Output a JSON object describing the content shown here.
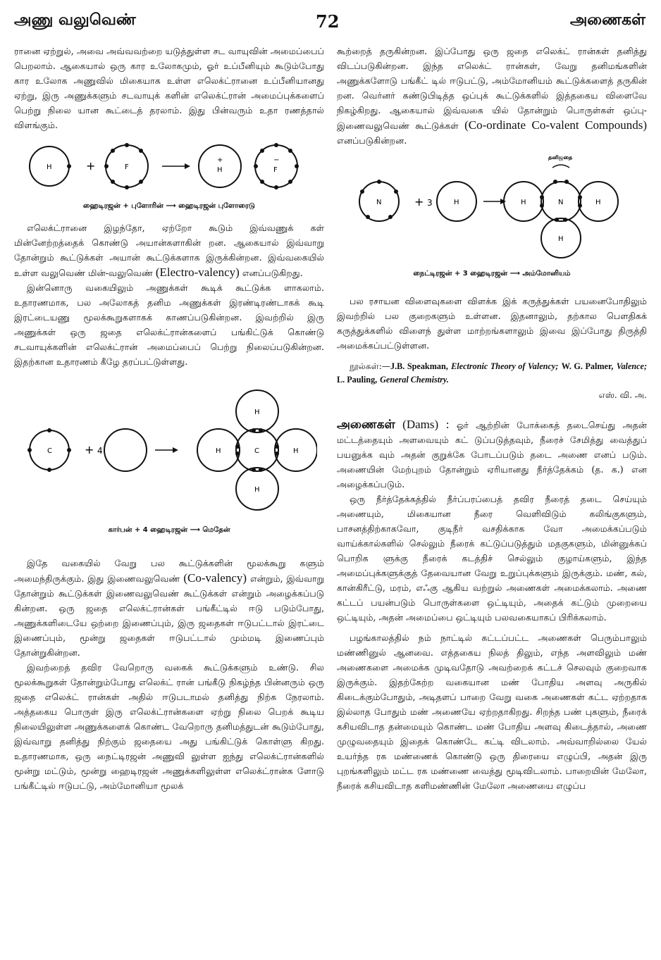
{
  "header": {
    "left": "அணு வலுவெண்",
    "page_number": "72",
    "right": "அணைகள்"
  },
  "left_column": {
    "p1": "ரானை ஏற்றுல், அவை அவ்வவற்றை யடுத்துள்ள சட வாயுவின் அமைப்பைப் பெறலாம். ஆகையால் ஒரு கார உலோகமும், ஓர் உப்பீனியும் கூடும்போது கார உலோக அணுவில் மிகையாக உள்ள எலெக்ட்ரானை உப்பீனியானது ஏற்று, இரு அணுக்களும் சடவாயுக் களின் எலெக்ட்ரான் அமைப்புக்களைப் பெற்று நிலை யான கூட்டைத் தரலாம். இது பின்வரும் உதா ரணத்தால் விளங்கும்.",
    "fig1_caption": "ஹைடிரஜன் + புளோரின் ⟶ ஹைடிரஜன் புளோரைடு",
    "p2": "எலெக்ட்ரானை இழந்தோ, ஏற்றோ கூடும் இவ்வணுக் கள் மின்னேற்றத்தைக் கொண்டு அயான்களாகின் றன. ஆகையால் இவ்வாறு தோன்றும் கூட்டுக்கள் அயான் கூட்டுக்களாக இருக்கின்றன. இவ்வகையில் உள்ள வலுவெண் மின்-வலுவெண்",
    "p2_english": "(Electro-valency)",
    "p2_end": "எனப்படுகிறது.",
    "p3": "இன்னொரு வகையிலும் அணுக்கள் கூடிக் கூட்டுக்க ளாகலாம். உதாரணமாக, பல அலோகத் தனிம அணுக்கள் இரண்டிரண்டாகக் கூடி இரட்டையணு மூலக்கூறுகளாகக் காணப்படுகின்றன. இவற்றில் இரு அணுக்கள் ஒரு ஜதை எலெக்ட்ரான்களைப் பங்கிட்டுக் கொண்டு சடவாயுக்களின் எலெக்ட்ரான் அமைப்பைப் பெற்று நிலைப்படுகின்றன. இதற்கான உதாரணம் கீழே தரப்பட்டுள்ளது.",
    "fig2_caption": "கார்பன் + 4 ஹைடிரஜன் ⟶ மெதேன்",
    "p4": "இதே வகையில் வேறு பல கூட்டுக்களின் மூலக்கூறு களும் அமைந்திருக்கும். இது இணைவலுவெண்",
    "p4_english": "(Co-valency)",
    "p4_end": "என்றும், இவ்வாறு தோன்றும் கூட்டுக்கள் இணைவலுவெண் கூட்டுக்கள் என்றும் அழைக்கப்படு கின்றன. ஒரு ஜதை எலெக்ட்ரான்கள் பங்கீட்டில் ஈடு படும்போது, அணுக்களிடையே ஒற்றை இணைப்பும், இரு ஜதைகள் ஈடுபட்டால் இரட்டை இணைப்பும், மூன்று ஜதைகள் ஈடுபட்டால் மும்மடி இணைப்பும் தோன்றுகின்றன.",
    "p5": "இவற்றைத் தவிர வேறொரு வகைக் கூட்டுக்களும் உண்டு. சில மூலக்கூறுகள் தோன்றும்போது எலெக்ட் ரான் பங்கீடு நிகழ்ந்த பின்னரும் ஒரு ஜதை எலெக்ட் ரான்கள் அதில் ஈடுபடாமல் தனித்து நிற்க நேரலாம். அத்தகைய பொருள் இரு எலெக்ட்ரான்களை ஏற்று நிலை பெறக் கூடிய நிலையிலுள்ள அணுக்களைக் கொண்ட வேறொரு தனிமத்துடன் கூடும்போது, இவ்வாறு தனித்து நிற்கும் ஜதையை அது பங்கிட்டுக் கொள்ளு கிறது. உதாரணமாக, ஒரு நைட்டிரஜன் அணுவி லுள்ள ஐந்து எலெக்ட்ரான்களில் மூன்று மட்டும், மூன்று ஹைடிரஜன் அணுக்களிலுள்ள எலெக்ட்ரான்க ளோடு பங்கீட்டில் ஈடுபட்டு, அம்மோனியா மூலக்"
  },
  "right_column": {
    "p1": "கூற்றைத் தருகின்றன. இப்போது ஒரு ஜதை எலெக்ட் ரான்கள் தனித்து விடப்படுகின்றன. இந்த எலெக்ட் ரான்கள், வேறு தனிமங்களின் அணுக்களோடு பங்கீட் டில் ஈடுபட்டு, அம்மோனியம் கூட்டுக்களைத் தருகின் றன. வெர்னர் கண்டுபிடித்த ஒப்புக் கூட்டுக்களில் இத்தகைய விளைவே நிகழ்கிறது. ஆகையால் இவ்வகை யில் தோன்றும் பொருள்கள் ஒப்பு-இணைவலுவெண் கூட்டுக்கள்",
    "p1_english": "(Co-ordinate Co-valent Compounds)",
    "p1_end": "எனப்படுகின்றன.",
    "fig3_top_label": "தனிஜதை",
    "fig3_caption": "நைட்டிரஜன் + 3 ஹைடிரஜன் ⟶ அம்மோனியம்",
    "p2": "பல ரசாயன விளைவுகளை விளக்க இக் கருத்துக்கள் பயனைபோதிலும் இவற்றில் பல குறைகளும் உள்ளன. இதனாலும், தற்கால பௌதிகக் கருத்துக்களில் விளைந் துள்ள மாற்றங்களாலும் இவை இப்போது திருத்தி அமைக்கப்பட்டுள்ளன.",
    "refs_prefix": "நூல்கள்:—",
    "ref1_author": "J.B. Speakman,",
    "ref1_title": "Electronic Theory of Valency;",
    "ref2_author": "W. G. Palmer,",
    "ref2_title": "Valence;",
    "ref3_author": "L. Pauling,",
    "ref3_title": "General Chemistry.",
    "signature": "எஸ். வி. அ.",
    "dams_heading": "அணைகள்",
    "dams_english": "(Dams) :",
    "p3": "ஓர் ஆற்றின் போக்கைத் தடைசெய்து அதன் மட்டத்தையும் அளவையும் கட் டுப்படுத்தவும், நீரைச் சேமித்து வைத்துப் பயனுக்க வும் அதன் குறுக்கே போடப்படும் தடை அணை எனப் படும். அணையின் மேற்புறம் தோன்றும் ஏரியானது நீர்த்தேக்கம் (த. க.) என அழைக்கப்படும்.",
    "p4": "ஒரு நீர்த்தேக்கத்தில் நீர்ப்பரப்பைத் தவிர நீரைத் தடை செய்யும் அணையும், மிகையான நீரை வெளிவிடும் கலிங்குகளும், பாசனத்திற்காகவோ, குடிநீர் வசதிக்காக வோ அமைக்கப்படும் வாய்க்கால்களில் செல்லும் நீரைக் கட்டுப்படுத்தும் மதகுகளும், மின்னுக்கப் பொறிக ளுக்கு நீரைக் கடத்திச் செல்லும் குழாய்களும், இந்த அமைப்புக்களுக்குத் தேவையான வேறு உறுப்புக்களும் இருக்கும். மண், கல், கான்கிரீட்டு, மரம், எஃகு ஆகிய வற்றுல் அணைகள் அமைக்கலாம். அணை கட்டப் பயன்படும் பொருள்களை ஒட்டியும், அதைக் கட்டும் முறையை ஒட்டியும், அதன் அமைப்பை ஒட்டியும் பலவகையாகப் பிரிக்கலாம்.",
    "p5": "பழங்காலத்தில் நம் நாட்டில் கட்டப்பட்ட அணைகள் பெரும்பாலும் மண்ணினுல் ஆனவை. எத்தகைய நிலத் திலும், எந்த அளவிலும் மண் அணைகளை அமைக்க முடிவதோடு அவற்றைக் கட்டச் செலவும் குறைவாக இருக்கும். இதற்கேற்ற வகையான மண் போதிய அளவு அருகில் கிடைக்கும்போதும், அடிதளப் பாறை வேறு வகை அணைகள் கட்ட ஏற்றதாக இல்லாத போதும் மண் அணையே ஏற்றதாகிறது. சிறந்த பண் புகளும், நீரைக் கசியவிடாத தன்மையும் கொண்ட மண் போதிய அளவு கிடைத்தால், அணை முழுவதையும் இதைக் கொண்டே கட்டி விடலாம். அவ்வாறில்லை யேல் உயர்ந்த ரக மண்ணைக் கொண்டு ஒரு திரையை எழுப்பி, அதன் இரு புறங்களிலும் மட்ட ரக மண்ணை வைத்து மூடிவிடலாம். பாறையின் மேலோ, நீரைக் கசியவிடாத களிமண்ணின் மேலோ அணையை எழுப்ப"
  },
  "diagram_labels": {
    "H": "H",
    "F": "F",
    "C": "C",
    "N": "N",
    "plus": "+",
    "four": "4",
    "three": "3",
    "plus_sign": "+",
    "minus_sign": "−"
  }
}
